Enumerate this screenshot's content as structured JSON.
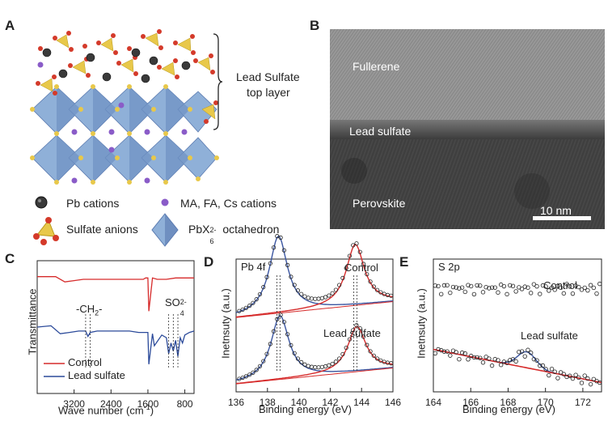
{
  "panels": {
    "A": {
      "label": "A",
      "bracket_label_line1": "Lead Sulfate",
      "bracket_label_line2": "top layer",
      "legend": {
        "pb": "Pb cations",
        "ma": "MA, FA, Cs cations",
        "sulfate": "Sulfate anions",
        "octa_main": "PbX",
        "octa_sub": "6",
        "octa_sup": "2-",
        "octa_rest": " octahedron"
      }
    },
    "B": {
      "label": "B",
      "fullerene": "Fullerene",
      "lead_sulfate": "Lead sulfate",
      "perovskite": "Perovskite",
      "scale": "10 nm"
    },
    "C": {
      "label": "C",
      "ylabel": "Transmittance",
      "xlabel_main": "Wave number (cm",
      "xlabel_sup": "-1",
      "xlabel_end": ")",
      "ann_ch2_a": "-CH",
      "ann_ch2_sub": "2",
      "ann_ch2_b": "-",
      "ann_so4_a": "SO",
      "ann_so4_sub": "4",
      "ann_so4_sup": "2-",
      "legend_control": "Control",
      "legend_lead": "Lead sulfate",
      "colors": {
        "control": "#d62b2b",
        "lead": "#2b4a9a"
      }
    },
    "D": {
      "label": "D",
      "title": "Pb 4f",
      "ylabel": "Inetnsuty (a.u.)",
      "xlabel": "Binding energy (eV)",
      "control": "Control",
      "lead": "Lead sulfate"
    },
    "E": {
      "label": "E",
      "title": "S 2p",
      "ylabel": "Inetnsuty (a.u.)",
      "xlabel": "Binding energy (eV)",
      "control": "Control",
      "lead": "Lead sulfate"
    }
  },
  "chart_data": [
    {
      "type": "line",
      "panel": "C",
      "x_ticks": [
        "3200",
        "2400",
        "1600",
        "800"
      ],
      "x_tick_values": [
        3200,
        2400,
        1600,
        800
      ],
      "xlim": [
        4000,
        600
      ],
      "series": [
        {
          "name": "Control",
          "color": "#d62b2b",
          "x": [
            4000,
            3600,
            3400,
            3200,
            3000,
            2800,
            2600,
            2400,
            2200,
            2000,
            1800,
            1700,
            1650,
            1600,
            1580,
            1500,
            1400,
            1200,
            1000,
            800,
            600
          ],
          "y": [
            0.88,
            0.88,
            0.84,
            0.85,
            0.86,
            0.86,
            0.86,
            0.86,
            0.86,
            0.86,
            0.86,
            0.86,
            0.87,
            0.87,
            0.62,
            0.87,
            0.86,
            0.86,
            0.87,
            0.87,
            0.87
          ]
        },
        {
          "name": "Lead sulfate",
          "color": "#2b4a9a",
          "x": [
            4000,
            3700,
            3500,
            3300,
            3100,
            2950,
            2900,
            2850,
            2700,
            2500,
            2350,
            2200,
            2000,
            1800,
            1700,
            1600,
            1580,
            1500,
            1460,
            1300,
            1200,
            1150,
            1100,
            1050,
            1000,
            950,
            900,
            850,
            800,
            700,
            600
          ],
          "y": [
            0.5,
            0.51,
            0.45,
            0.46,
            0.47,
            0.47,
            0.43,
            0.46,
            0.47,
            0.47,
            0.47,
            0.47,
            0.47,
            0.46,
            0.46,
            0.46,
            0.22,
            0.45,
            0.36,
            0.44,
            0.42,
            0.3,
            0.38,
            0.32,
            0.4,
            0.28,
            0.42,
            0.38,
            0.44,
            0.46,
            0.47
          ]
        }
      ]
    },
    {
      "type": "line",
      "panel": "D",
      "x_ticks": [
        "136",
        "138",
        "140",
        "142",
        "144",
        "146"
      ],
      "x_tick_values": [
        136,
        138,
        140,
        142,
        144,
        146
      ],
      "xlim": [
        136,
        146
      ],
      "series": [
        {
          "name": "Control",
          "peaks": [
            138.7,
            143.6
          ],
          "heights": [
            0.58,
            0.46
          ],
          "offset": 0.56
        },
        {
          "name": "Lead sulfate",
          "peaks": [
            138.8,
            143.7
          ],
          "heights": [
            0.48,
            0.34
          ],
          "offset": 0.06
        }
      ]
    },
    {
      "type": "scatter",
      "panel": "E",
      "x_ticks": [
        "164",
        "166",
        "168",
        "170",
        "172"
      ],
      "x_tick_values": [
        164,
        166,
        168,
        170,
        172
      ],
      "xlim": [
        164,
        173
      ],
      "series": [
        {
          "name": "Control",
          "level": 0.78
        },
        {
          "name": "Lead sulfate",
          "start": 0.32,
          "end": 0.07,
          "peak_x": 169.0,
          "peak_h": 0.12
        }
      ]
    }
  ]
}
